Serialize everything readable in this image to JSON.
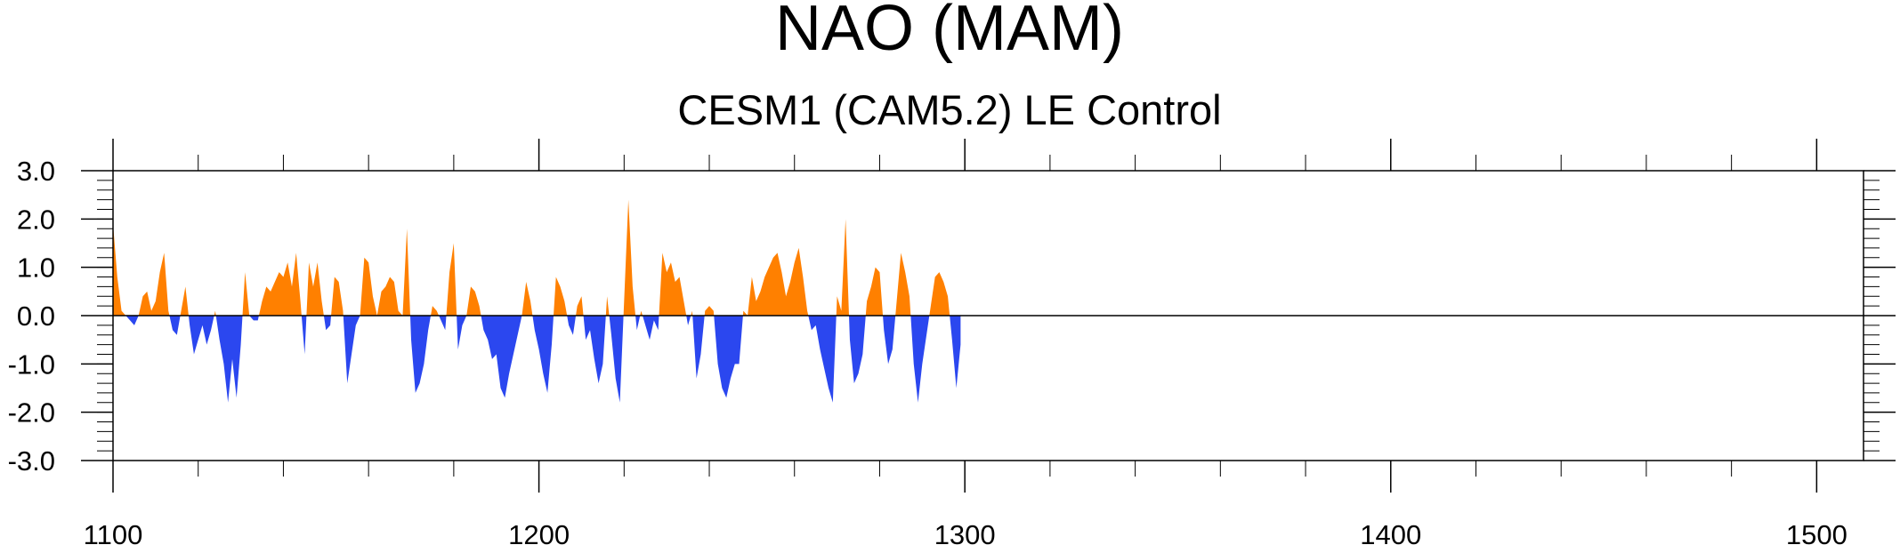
{
  "chart_data": {
    "type": "area",
    "title": "NAO (MAM)",
    "subtitle": "CESM1 (CAM5.2) LE Control",
    "xlabel": "",
    "ylabel": "",
    "xlim": [
      1100,
      1511
    ],
    "ylim": [
      -3.0,
      3.0
    ],
    "x_ticks": [
      1100,
      1200,
      1300,
      1400,
      1500
    ],
    "x_tick_labels": [
      "1100",
      "1200",
      "1300",
      "1400",
      "1500"
    ],
    "y_ticks": [
      3.0,
      2.0,
      1.0,
      0.0,
      -1.0,
      -2.0,
      -3.0
    ],
    "y_tick_labels": [
      "3.0",
      "2.0",
      "1.0",
      "0.0",
      "-1.0",
      "-2.0",
      "-3.0"
    ],
    "grid": false,
    "fill_above_zero_color": "#ff8000",
    "fill_below_zero_color": "#2b47ef",
    "series": [
      {
        "x_start": 1100,
        "x_step": 1,
        "values": [
          1.9,
          0.8,
          0.1,
          0.0,
          -0.1,
          -0.2,
          0.0,
          0.4,
          0.5,
          0.1,
          0.3,
          0.9,
          1.3,
          0.1,
          -0.3,
          -0.4,
          0.1,
          0.6,
          -0.2,
          -0.8,
          -0.5,
          -0.2,
          -0.6,
          -0.3,
          0.1,
          -0.5,
          -1.0,
          -1.8,
          -0.9,
          -1.7,
          -0.6,
          0.9,
          0.0,
          -0.1,
          -0.1,
          0.3,
          0.6,
          0.5,
          0.7,
          0.9,
          0.8,
          1.1,
          0.6,
          1.3,
          0.3,
          -0.8,
          1.1,
          0.6,
          1.1,
          0.3,
          -0.3,
          -0.2,
          0.8,
          0.7,
          0.1,
          -1.4,
          -0.8,
          -0.2,
          0.0,
          1.2,
          1.1,
          0.4,
          0.0,
          0.5,
          0.6,
          0.8,
          0.7,
          0.1,
          0.0,
          1.8,
          -0.5,
          -1.6,
          -1.4,
          -1.0,
          -0.3,
          0.2,
          0.1,
          -0.1,
          -0.3,
          0.9,
          1.5,
          -0.7,
          -0.2,
          0.0,
          0.6,
          0.5,
          0.2,
          -0.3,
          -0.5,
          -0.9,
          -0.8,
          -1.5,
          -1.7,
          -1.2,
          -0.8,
          -0.4,
          0.0,
          0.7,
          0.3,
          -0.3,
          -0.7,
          -1.2,
          -1.6,
          -0.6,
          0.8,
          0.6,
          0.3,
          -0.2,
          -0.4,
          0.2,
          0.4,
          -0.5,
          -0.3,
          -0.9,
          -1.4,
          -1.0,
          0.4,
          -0.4,
          -1.3,
          -1.8,
          0.3,
          2.4,
          0.6,
          -0.3,
          0.1,
          -0.2,
          -0.5,
          -0.1,
          -0.3,
          1.3,
          0.9,
          1.1,
          0.7,
          0.8,
          0.3,
          -0.2,
          0.1,
          -1.3,
          -0.8,
          0.1,
          0.2,
          0.1,
          -1.0,
          -1.5,
          -1.7,
          -1.3,
          -1.0,
          -1.0,
          0.1,
          0.0,
          0.8,
          0.3,
          0.5,
          0.8,
          1.0,
          1.2,
          1.3,
          0.9,
          0.4,
          0.7,
          1.1,
          1.4,
          0.8,
          0.1,
          -0.3,
          -0.2,
          -0.7,
          -1.1,
          -1.5,
          -1.8,
          0.4,
          0.1,
          2.0,
          -0.5,
          -1.4,
          -1.2,
          -0.8,
          0.3,
          0.6,
          1.0,
          0.9,
          -0.3,
          -1.0,
          -0.7,
          0.3,
          1.3,
          0.9,
          0.4,
          -1.0,
          -1.8,
          -1.0,
          -0.4,
          0.2,
          0.8,
          0.9,
          0.7,
          0.4,
          -0.5,
          -1.5,
          -0.6
        ]
      }
    ]
  }
}
